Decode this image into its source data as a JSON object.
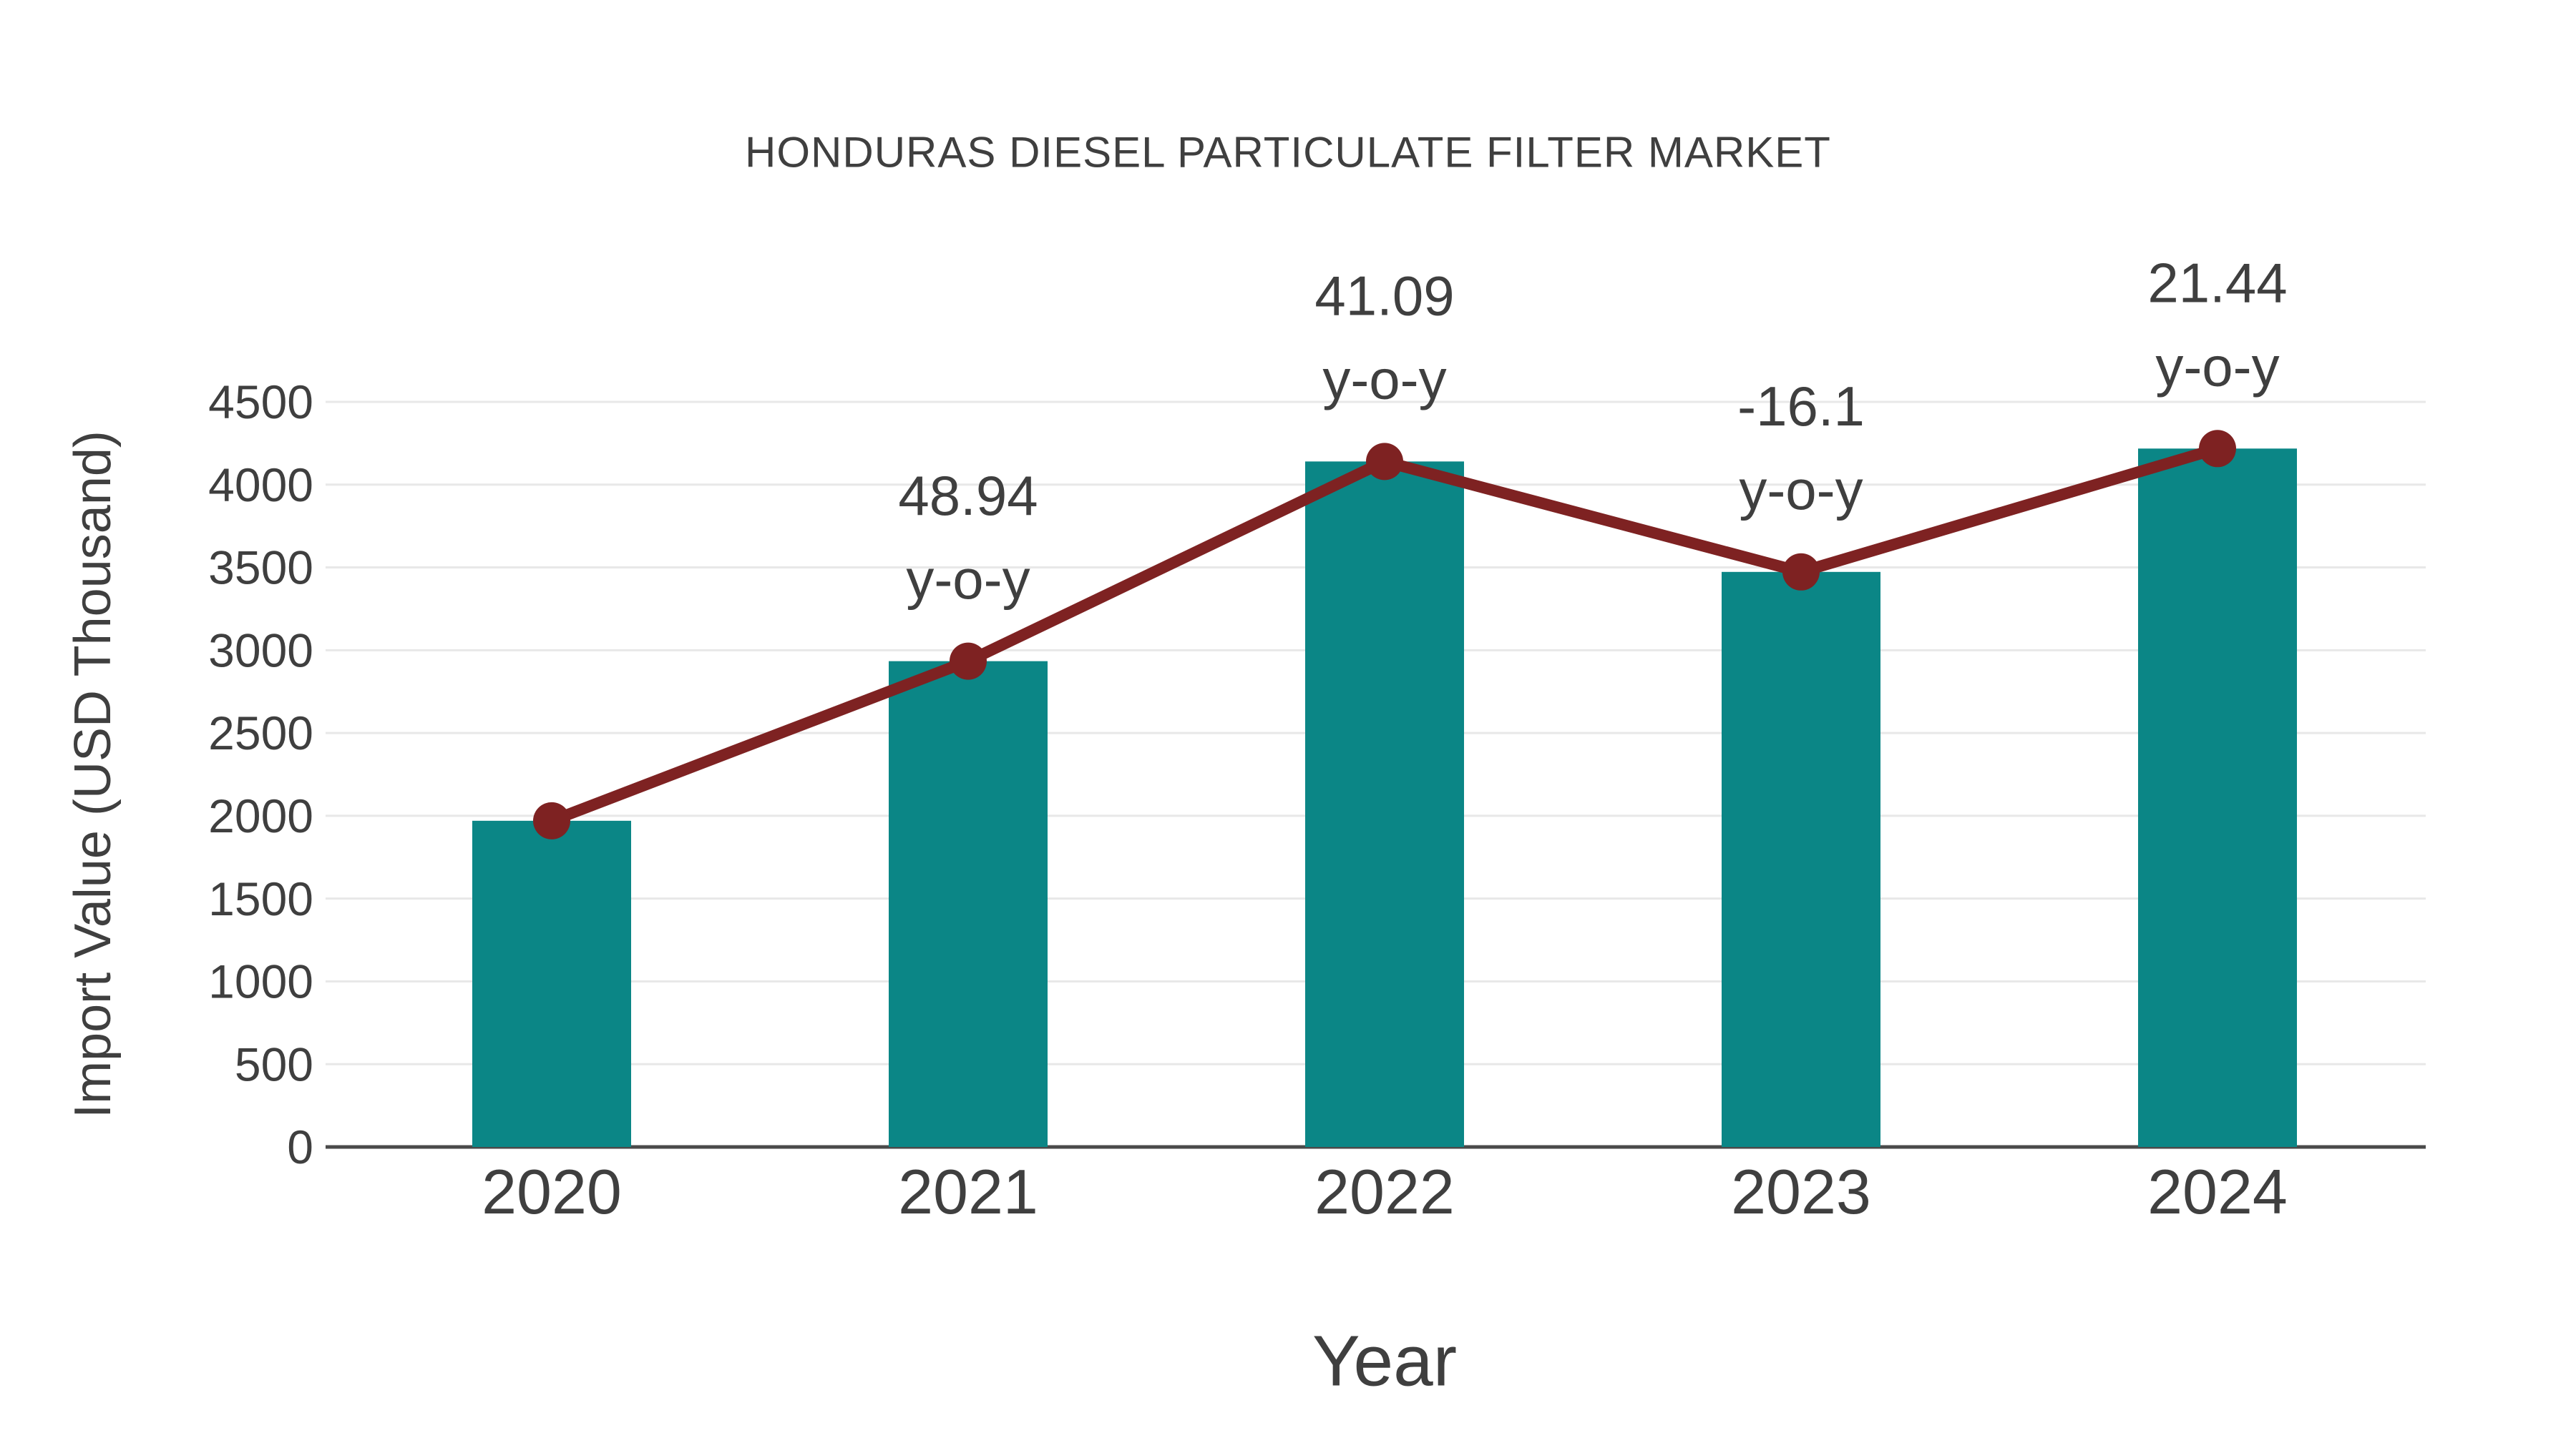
{
  "chart_data": {
    "type": "bar",
    "title": "HONDURAS DIESEL PARTICULATE FILTER MARKET",
    "xlabel": "Year",
    "ylabel": "Import Value (USD Thousand)",
    "categories": [
      "2020",
      "2021",
      "2022",
      "2023",
      "2024"
    ],
    "series": [
      {
        "name": "import-value-bars",
        "type": "bar",
        "values": [
          1970,
          2934,
          4140,
          3473,
          4218
        ]
      },
      {
        "name": "import-value-trend-line",
        "type": "line",
        "values": [
          1970,
          2934,
          4140,
          3473,
          4218
        ]
      }
    ],
    "annotations": [
      {
        "category": "2021",
        "line1": "48.94",
        "line2": "y-o-y"
      },
      {
        "category": "2022",
        "line1": "41.09",
        "line2": "y-o-y"
      },
      {
        "category": "2023",
        "line1": "-16.1",
        "line2": "y-o-y"
      },
      {
        "category": "2024",
        "line1": "21.44",
        "line2": "y-o-y"
      }
    ],
    "ylim": [
      0,
      4500
    ],
    "ytick_step": 500,
    "yticks": [
      "0",
      "500",
      "1000",
      "1500",
      "2000",
      "2500",
      "3000",
      "3500",
      "4000",
      "4500"
    ],
    "grid": true,
    "legend": "none",
    "colors": {
      "bar": "#0B8686",
      "line": "#7E2222",
      "marker": "#7E2222",
      "text": "#3F3F3F",
      "grid": "#E8E8E8",
      "axis": "#4A4A4A",
      "background": "#FFFFFF"
    }
  }
}
